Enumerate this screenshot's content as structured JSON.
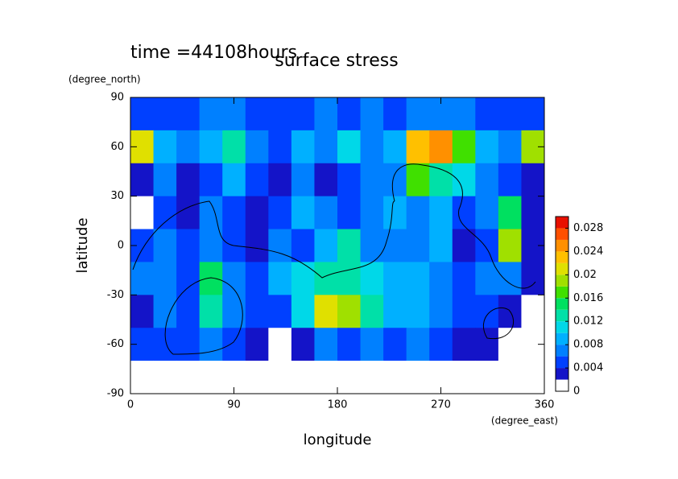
{
  "chart_data": {
    "type": "contour",
    "title": "surface stress",
    "subtitle": "time =44108hours",
    "x_label": "longitude",
    "x_unit": "(degree_east)",
    "y_label": "latitude",
    "y_unit": "(degree_north)",
    "xlim": [
      0,
      360
    ],
    "ylim": [
      -90,
      90
    ],
    "xticks": [
      0,
      90,
      180,
      270,
      360
    ],
    "yticks": [
      90,
      60,
      30,
      0,
      -30,
      -60,
      -90
    ],
    "x": [
      10,
      30,
      50,
      70,
      90,
      110,
      130,
      150,
      170,
      190,
      210,
      230,
      250,
      270,
      290,
      310,
      330,
      350
    ],
    "y": [
      80,
      60,
      40,
      20,
      0,
      -20,
      -40,
      -60,
      -80
    ],
    "z": [
      [
        0.005,
        0.004,
        0.005,
        0.006,
        0.006,
        0.005,
        0.005,
        0.004,
        0.006,
        0.004,
        0.006,
        0.005,
        0.006,
        0.007,
        0.006,
        0.005,
        0.004,
        0.005
      ],
      [
        0.02,
        0.008,
        0.006,
        0.008,
        0.012,
        0.006,
        0.005,
        0.008,
        0.006,
        0.01,
        0.006,
        0.008,
        0.022,
        0.024,
        0.016,
        0.008,
        0.006,
        0.018
      ],
      [
        0.003,
        0.006,
        0.002,
        0.005,
        0.008,
        0.004,
        0.003,
        0.006,
        0.002,
        0.004,
        0.006,
        0.006,
        0.016,
        0.012,
        0.01,
        0.006,
        0.004,
        0.003
      ],
      [
        0.001,
        0.004,
        0.002,
        0.006,
        0.005,
        0.003,
        0.005,
        0.008,
        0.006,
        0.005,
        0.006,
        0.008,
        0.006,
        0.008,
        0.004,
        0.006,
        0.014,
        0.003
      ],
      [
        0.004,
        0.006,
        0.005,
        0.006,
        0.004,
        0.003,
        0.006,
        0.004,
        0.008,
        0.012,
        0.007,
        0.006,
        0.006,
        0.008,
        0.003,
        0.004,
        0.018,
        0.003
      ],
      [
        0.006,
        0.006,
        0.005,
        0.014,
        0.006,
        0.004,
        0.008,
        0.01,
        0.012,
        0.012,
        0.01,
        0.008,
        0.008,
        0.006,
        0.004,
        0.006,
        0.006,
        0.002
      ],
      [
        0.003,
        0.006,
        0.004,
        0.012,
        0.006,
        0.004,
        0.004,
        0.01,
        0.02,
        0.018,
        0.012,
        0.008,
        0.008,
        0.006,
        0.004,
        0.004,
        0.002,
        0.001
      ],
      [
        0.004,
        0.005,
        0.004,
        0.006,
        0.004,
        0.002,
        0.001,
        0.003,
        0.006,
        0.005,
        0.006,
        0.005,
        0.006,
        0.005,
        0.003,
        0.002,
        0.001,
        0
      ],
      [
        0,
        0,
        0,
        0,
        0,
        0,
        0,
        0,
        0,
        0,
        0,
        0,
        0,
        0,
        0,
        0,
        0,
        0
      ]
    ],
    "levels": [
      0,
      0.002,
      0.004,
      0.006,
      0.008,
      0.01,
      0.012,
      0.014,
      0.016,
      0.018,
      0.02,
      0.022,
      0.024,
      0.026,
      0.028,
      0.03
    ],
    "colors": [
      "#ffffff",
      "#1414c8",
      "#0040ff",
      "#0080ff",
      "#00b0ff",
      "#00d8e8",
      "#00e0a8",
      "#00e060",
      "#40e000",
      "#a0e000",
      "#e0e000",
      "#ffc000",
      "#ff9000",
      "#ff5000",
      "#e81000"
    ],
    "colorbar_ticks": [
      0,
      0.004,
      0.008,
      0.012,
      0.016,
      0.02,
      0.024,
      0.028
    ]
  }
}
